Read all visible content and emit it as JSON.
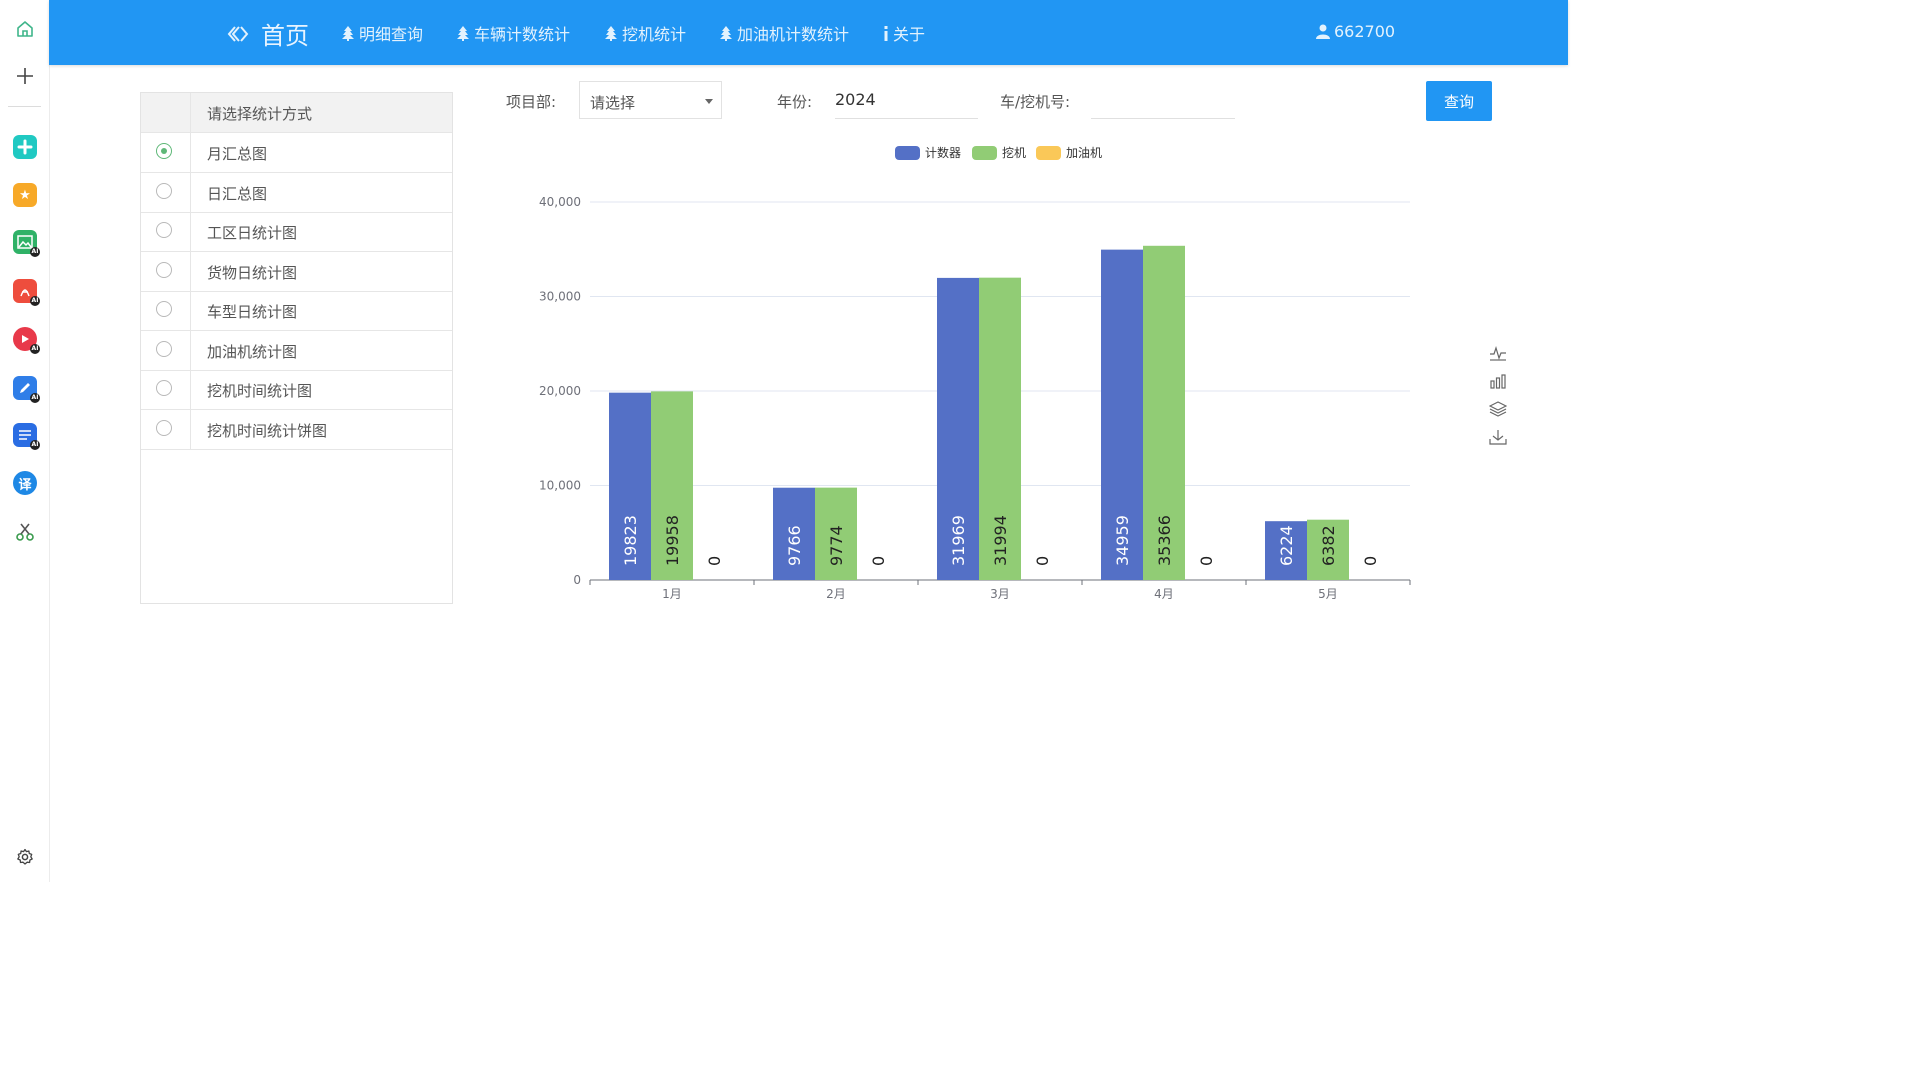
{
  "sidebar": {
    "icons": [
      "home-icon",
      "plus-icon",
      "ai-app-1-icon",
      "star-app-icon",
      "image-ai-icon",
      "pdf-ai-icon",
      "video-ai-icon",
      "write-ai-icon",
      "doc-ai-icon",
      "translate-icon",
      "scissors-icon",
      "settings-icon"
    ],
    "translate_glyph": "译",
    "ai_badge": "AI"
  },
  "nav": {
    "brand": "首页",
    "items": [
      "明细查询",
      "车辆计数统计",
      "挖机统计",
      "加油机计数统计",
      "关于"
    ],
    "user": "662700"
  },
  "panel": {
    "header": "请选择统计方式",
    "options": [
      "月汇总图",
      "日汇总图",
      "工区日统计图",
      "货物日统计图",
      "车型日统计图",
      "加油机统计图",
      "挖机时间统计图",
      "挖机时间统计饼图"
    ],
    "selected_index": 0
  },
  "filters": {
    "project_label": "项目部:",
    "project_value": "请选择",
    "year_label": "年份:",
    "year_value": "2024",
    "vehicle_label": "车/挖机号:",
    "vehicle_value": "",
    "query_button": "查询"
  },
  "chart_data": {
    "type": "bar",
    "categories": [
      "1月",
      "2月",
      "3月",
      "4月",
      "5月"
    ],
    "series": [
      {
        "name": "计数器",
        "values": [
          19823,
          9766,
          31969,
          34959,
          6224
        ],
        "color": "#5470c6"
      },
      {
        "name": "挖机",
        "values": [
          19958,
          9774,
          31994,
          35366,
          6382
        ],
        "color": "#91cc75"
      },
      {
        "name": "加油机",
        "values": [
          0,
          0,
          0,
          0,
          0
        ],
        "color": "#fac858"
      }
    ],
    "ylim": [
      0,
      40000
    ],
    "yticks": [
      "0",
      "10,000",
      "20,000",
      "30,000",
      "40,000"
    ],
    "legend": "top-center",
    "grid": true,
    "data_labels": "inside-rotated"
  },
  "toolbox": [
    "line-chart-icon",
    "bar-chart-icon",
    "stack-icon",
    "download-icon"
  ]
}
